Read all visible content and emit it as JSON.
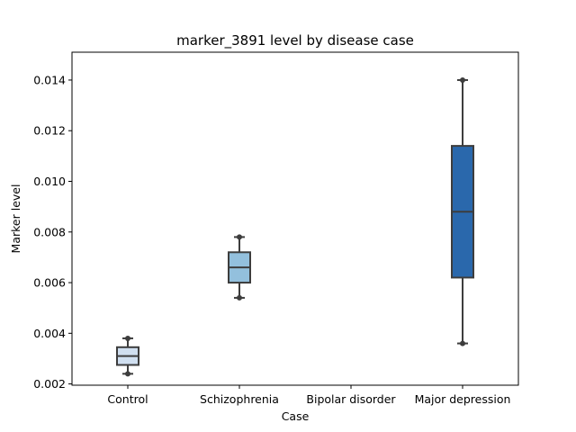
{
  "chart_data": {
    "type": "box",
    "title": "marker_3891 level by disease case",
    "xlabel": "Case",
    "ylabel": "Marker level",
    "ylim": [
      0.00195,
      0.0151
    ],
    "yticks": [
      "0.002",
      "0.004",
      "0.006",
      "0.008",
      "0.010",
      "0.012",
      "0.014"
    ],
    "ytick_values": [
      0.002,
      0.004,
      0.006,
      0.008,
      0.01,
      0.012,
      0.014
    ],
    "categories": [
      "Control",
      "Schizophrenia",
      "Bipolar disorder",
      "Major depression"
    ],
    "boxes": [
      {
        "category": "Control",
        "min": 0.0024,
        "q1": 0.00275,
        "median": 0.0031,
        "q3": 0.00345,
        "max": 0.0038,
        "color": "#d0dff0"
      },
      {
        "category": "Schizophrenia",
        "min": 0.0054,
        "q1": 0.006,
        "median": 0.0066,
        "q3": 0.0072,
        "max": 0.0078,
        "color": "#93c0dd"
      },
      {
        "category": "Bipolar disorder",
        "empty": true
      },
      {
        "category": "Major depression",
        "min": 0.0036,
        "q1": 0.0062,
        "median": 0.0088,
        "q3": 0.0114,
        "max": 0.014,
        "color": "#2a68ac"
      }
    ],
    "grid": false,
    "legend": "none"
  }
}
